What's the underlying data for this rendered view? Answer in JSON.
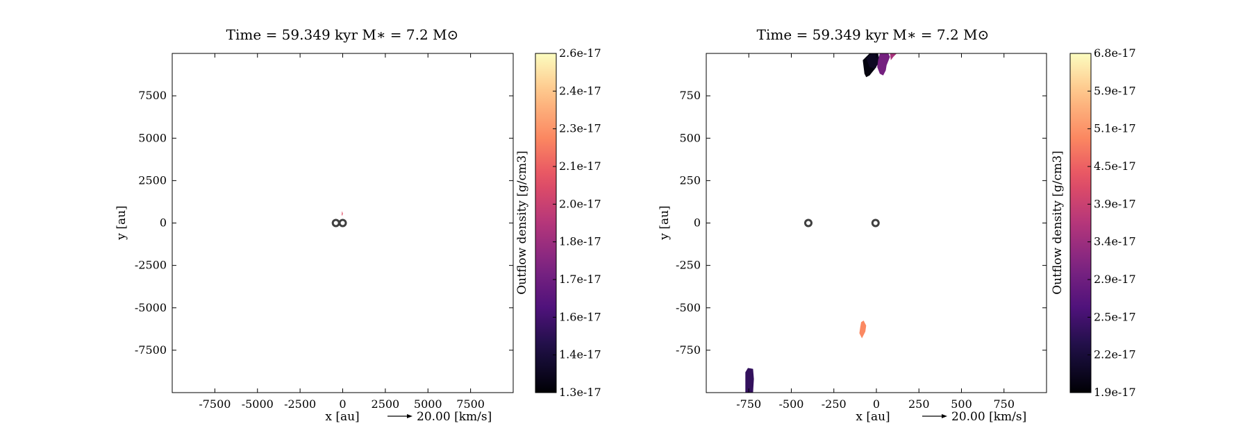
{
  "chart_data": [
    {
      "type": "heatmap",
      "title": "Time = 59.349 kyr    M∗ = 7.2 M⊙",
      "xlabel": "x [au]",
      "ylabel": "y [au]",
      "xlim": [
        -10000,
        10000
      ],
      "ylim": [
        -10000,
        10000
      ],
      "x_ticks": [
        -7500,
        -5000,
        -2500,
        0,
        2500,
        5000,
        7500
      ],
      "y_ticks": [
        -7500,
        -5000,
        -2500,
        0,
        2500,
        5000,
        7500
      ],
      "x_tick_labels": [
        "-7500",
        "-5000",
        "-2500",
        "0",
        "2500",
        "5000",
        "7500"
      ],
      "y_tick_labels": [
        "-7500",
        "-5000",
        "-2500",
        "0",
        "2500",
        "5000",
        "7500"
      ],
      "vector_key": "20.00 [km/s]",
      "colorbar": {
        "label": "Outflow density [g/cm3]",
        "colormap": "magma",
        "range": [
          1.3e-17,
          2.6e-17
        ],
        "tick_labels": [
          "1.3e-17",
          "1.4e-17",
          "1.6e-17",
          "1.7e-17",
          "1.8e-17",
          "2.0e-17",
          "2.1e-17",
          "2.3e-17",
          "2.4e-17",
          "2.6e-17"
        ]
      },
      "stars": [
        {
          "x": -400,
          "y": 0
        },
        {
          "x": 0,
          "y": 0
        }
      ],
      "regions": [
        {
          "points": [
            [
              -60,
              450
            ],
            [
              -40,
              700
            ],
            [
              10,
              560
            ],
            [
              -20,
              450
            ]
          ],
          "value": 2.1e-17
        }
      ]
    },
    {
      "type": "heatmap",
      "title": "Time = 59.349 kyr    M∗ = 7.2 M⊙",
      "xlabel": "x [au]",
      "ylabel": "y [au]",
      "xlim": [
        -1000,
        1000
      ],
      "ylim": [
        -1000,
        1000
      ],
      "x_ticks": [
        -750,
        -500,
        -250,
        0,
        250,
        500,
        750
      ],
      "y_ticks": [
        -750,
        -500,
        -250,
        0,
        250,
        500,
        750
      ],
      "x_tick_labels": [
        "-750",
        "-500",
        "-250",
        "0",
        "250",
        "500",
        "750"
      ],
      "y_tick_labels": [
        "-750",
        "-500",
        "-250",
        "0",
        "250",
        "500",
        "750"
      ],
      "vector_key": "20.00 [km/s]",
      "colorbar": {
        "label": "Outflow density [g/cm3]",
        "colormap": "magma",
        "range": [
          1.9e-17,
          6.8e-17
        ],
        "tick_labels": [
          "1.9e-17",
          "2.2e-17",
          "2.5e-17",
          "2.9e-17",
          "3.4e-17",
          "3.9e-17",
          "4.5e-17",
          "5.1e-17",
          "5.9e-17",
          "6.8e-17"
        ]
      },
      "stars": [
        {
          "x": -400,
          "y": 0
        },
        {
          "x": -5,
          "y": 0
        }
      ],
      "regions": [
        {
          "points": [
            [
              -80,
              960
            ],
            [
              -40,
              1000
            ],
            [
              -10,
              1000
            ],
            [
              0,
              920
            ],
            [
              -40,
              870
            ],
            [
              -60,
              860
            ],
            [
              -70,
              880
            ],
            [
              -75,
              920
            ]
          ],
          "value": 2e-17
        },
        {
          "points": [
            [
              -60,
              970
            ],
            [
              -30,
              1000
            ],
            [
              10,
              1000
            ],
            [
              20,
              950
            ],
            [
              -10,
              910
            ],
            [
              -40,
              920
            ]
          ],
          "value": 2.2e-17
        },
        {
          "points": [
            [
              20,
              1000
            ],
            [
              70,
              1000
            ],
            [
              80,
              980
            ],
            [
              60,
              930
            ],
            [
              55,
              900
            ],
            [
              40,
              870
            ],
            [
              20,
              880
            ],
            [
              5,
              920
            ],
            [
              10,
              960
            ]
          ],
          "value": 3.6e-17
        },
        {
          "points": [
            [
              80,
              1000
            ],
            [
              120,
              1000
            ],
            [
              100,
              980
            ],
            [
              85,
              960
            ]
          ],
          "value": 4.2e-17
        },
        {
          "points": [
            [
              -95,
              -615
            ],
            [
              -90,
              -585
            ],
            [
              -75,
              -575
            ],
            [
              -60,
              -605
            ],
            [
              -65,
              -640
            ],
            [
              -85,
              -680
            ],
            [
              -100,
              -650
            ]
          ],
          "value": 5.6e-17
        },
        {
          "points": [
            [
              -770,
              -990
            ],
            [
              -770,
              -880
            ],
            [
              -755,
              -855
            ],
            [
              -725,
              -860
            ],
            [
              -720,
              -920
            ],
            [
              -725,
              -1000
            ],
            [
              -770,
              -1000
            ]
          ],
          "value": 2.8e-17
        }
      ]
    }
  ]
}
